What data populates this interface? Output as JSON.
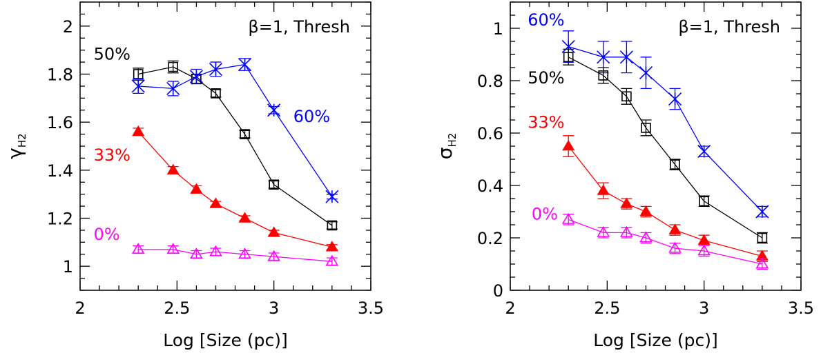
{
  "chart_data": [
    {
      "type": "line",
      "annotation": "β=1, Thresh",
      "xlabel": "Log [Size (pc)]",
      "ylabel_main": "γ",
      "ylabel_sub": "H2",
      "xlim": [
        2.0,
        3.5
      ],
      "ylim": [
        0.9,
        2.1
      ],
      "xticks": [
        2,
        2.5,
        3,
        3.5
      ],
      "xtick_labels": [
        "2",
        "2.5",
        "3",
        "3.5"
      ],
      "yticks": [
        1,
        1.2,
        1.4,
        1.6,
        1.8,
        2
      ],
      "ytick_labels": [
        "1",
        "1.2",
        "1.4",
        "1.6",
        "1.8",
        "2"
      ],
      "x": [
        2.3,
        2.48,
        2.6,
        2.7,
        2.85,
        3.0,
        3.3
      ],
      "series": [
        {
          "name": "50%",
          "color": "#000000",
          "marker": "open-square",
          "label_pos": [
            2.07,
            1.86
          ],
          "y": [
            1.8,
            1.83,
            1.78,
            1.72,
            1.55,
            1.34,
            1.17
          ],
          "err": [
            0.025,
            0.025,
            0.02,
            0.015,
            0.015,
            0.015,
            0.015
          ]
        },
        {
          "name": "60%",
          "color": "#0000ff",
          "marker": "star",
          "label_pos": [
            3.1,
            1.6
          ],
          "y": [
            1.75,
            1.74,
            1.79,
            1.82,
            1.84,
            1.65,
            1.29
          ],
          "err": [
            0.03,
            0.03,
            0.03,
            0.03,
            0.025,
            0.015,
            0.01
          ]
        },
        {
          "name": "33%",
          "color": "#ff0000",
          "marker": "filled-triangle",
          "label_pos": [
            2.07,
            1.44
          ],
          "y": [
            1.56,
            1.4,
            1.32,
            1.26,
            1.2,
            1.14,
            1.08
          ],
          "err": [
            0.015,
            0.015,
            0.015,
            0.01,
            0.01,
            0.01,
            0.01
          ]
        },
        {
          "name": "0%",
          "color": "#ff00ff",
          "marker": "open-triangle",
          "label_pos": [
            2.07,
            1.11
          ],
          "y": [
            1.07,
            1.07,
            1.05,
            1.06,
            1.05,
            1.04,
            1.02
          ],
          "err": [
            0.015,
            0.015,
            0.015,
            0.015,
            0.015,
            0.015,
            0.015
          ]
        }
      ]
    },
    {
      "type": "line",
      "annotation": "β=1, Thresh",
      "xlabel": "Log [Size (pc)]",
      "ylabel_main": "σ",
      "ylabel_sub": "H2",
      "xlim": [
        2.0,
        3.5
      ],
      "ylim": [
        0.0,
        1.1
      ],
      "xticks": [
        2,
        2.5,
        3,
        3.5
      ],
      "xtick_labels": [
        "2",
        "2.5",
        "3",
        "3.5"
      ],
      "yticks": [
        0,
        0.2,
        0.4,
        0.6,
        0.8,
        1
      ],
      "ytick_labels": [
        "0",
        "0.2",
        "0.4",
        "0.6",
        "0.8",
        "1"
      ],
      "x": [
        2.3,
        2.48,
        2.6,
        2.7,
        2.85,
        3.0,
        3.3
      ],
      "series": [
        {
          "name": "60%",
          "color": "#0000ff",
          "marker": "star",
          "label_pos": [
            2.09,
            1.01
          ],
          "y": [
            0.93,
            0.89,
            0.89,
            0.83,
            0.73,
            0.53,
            0.3
          ],
          "err": [
            0.06,
            0.06,
            0.06,
            0.06,
            0.04,
            0.02,
            0.02
          ]
        },
        {
          "name": "50%",
          "color": "#000000",
          "marker": "open-square",
          "label_pos": [
            2.09,
            0.79
          ],
          "y": [
            0.89,
            0.82,
            0.74,
            0.62,
            0.48,
            0.34,
            0.2
          ],
          "err": [
            0.03,
            0.03,
            0.03,
            0.03,
            0.02,
            0.02,
            0.02
          ]
        },
        {
          "name": "33%",
          "color": "#ff0000",
          "marker": "filled-triangle",
          "label_pos": [
            2.09,
            0.62
          ],
          "y": [
            0.55,
            0.38,
            0.33,
            0.3,
            0.23,
            0.19,
            0.13
          ],
          "err": [
            0.04,
            0.03,
            0.02,
            0.02,
            0.02,
            0.02,
            0.02
          ]
        },
        {
          "name": "0%",
          "color": "#ff00ff",
          "marker": "open-triangle",
          "label_pos": [
            2.11,
            0.27
          ],
          "y": [
            0.27,
            0.22,
            0.22,
            0.2,
            0.16,
            0.15,
            0.1
          ],
          "err": [
            0.02,
            0.02,
            0.02,
            0.02,
            0.02,
            0.02,
            0.02
          ]
        }
      ]
    }
  ]
}
